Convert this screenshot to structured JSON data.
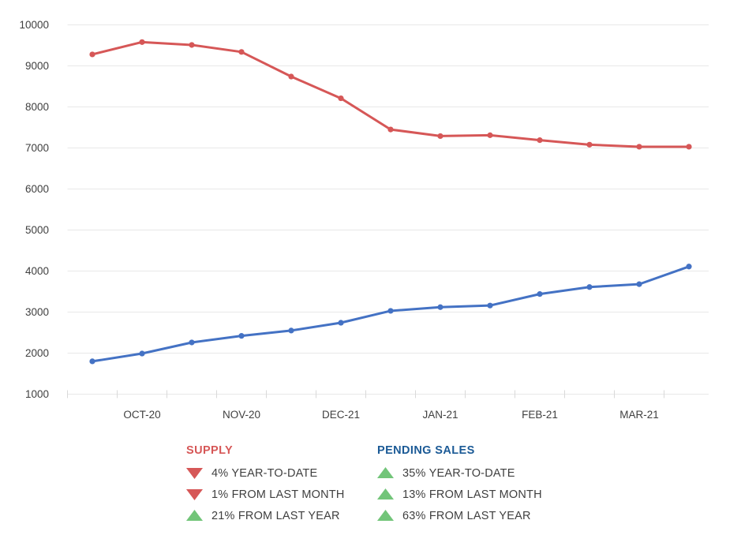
{
  "colors": {
    "red": "#d65757",
    "blue": "#4472c4",
    "green": "#72c579",
    "header_blue": "#1b5a96",
    "axis_text": "#404040",
    "grid": "#e8e8e8",
    "tick": "#d9d9d9",
    "text": "#3f3f3f"
  },
  "chart_data": {
    "type": "line",
    "title": "",
    "xlabel": "",
    "ylabel": "",
    "ylim": [
      1000,
      10000
    ],
    "y_ticks": [
      1000,
      2000,
      3000,
      4000,
      5000,
      6000,
      7000,
      8000,
      9000,
      10000
    ],
    "grid": true,
    "legend_position": "below",
    "n_points": 13,
    "x_tick_labels": [
      "OCT-20",
      "NOV-20",
      "DEC-21",
      "JAN-21",
      "FEB-21",
      "MAR-21"
    ],
    "label_point_indices": [
      1,
      3,
      5,
      7,
      9,
      11
    ],
    "series": [
      {
        "name": "SUPPLY",
        "color_key": "red",
        "values": [
          9280,
          9580,
          9510,
          9340,
          8740,
          8210,
          7450,
          7290,
          7310,
          7190,
          7080,
          7030,
          7030
        ]
      },
      {
        "name": "PENDING SALES",
        "color_key": "blue",
        "values": [
          1800,
          1990,
          2260,
          2420,
          2550,
          2740,
          3030,
          3120,
          3160,
          3440,
          3610,
          3680,
          4110
        ]
      }
    ]
  },
  "legend": {
    "supply": {
      "title": "SUPPLY",
      "title_color": "red",
      "rows": [
        {
          "direction": "down",
          "color": "red",
          "label": "4% YEAR-TO-DATE"
        },
        {
          "direction": "down",
          "color": "red",
          "label": "1% FROM LAST MONTH"
        },
        {
          "direction": "up",
          "color": "green",
          "label": "21% FROM LAST YEAR"
        }
      ]
    },
    "pending": {
      "title": "PENDING SALES",
      "title_color": "header_blue",
      "rows": [
        {
          "direction": "up",
          "color": "green",
          "label": "35% YEAR-TO-DATE"
        },
        {
          "direction": "up",
          "color": "green",
          "label": "13% FROM LAST MONTH"
        },
        {
          "direction": "up",
          "color": "green",
          "label": "63% FROM LAST YEAR"
        }
      ]
    }
  }
}
